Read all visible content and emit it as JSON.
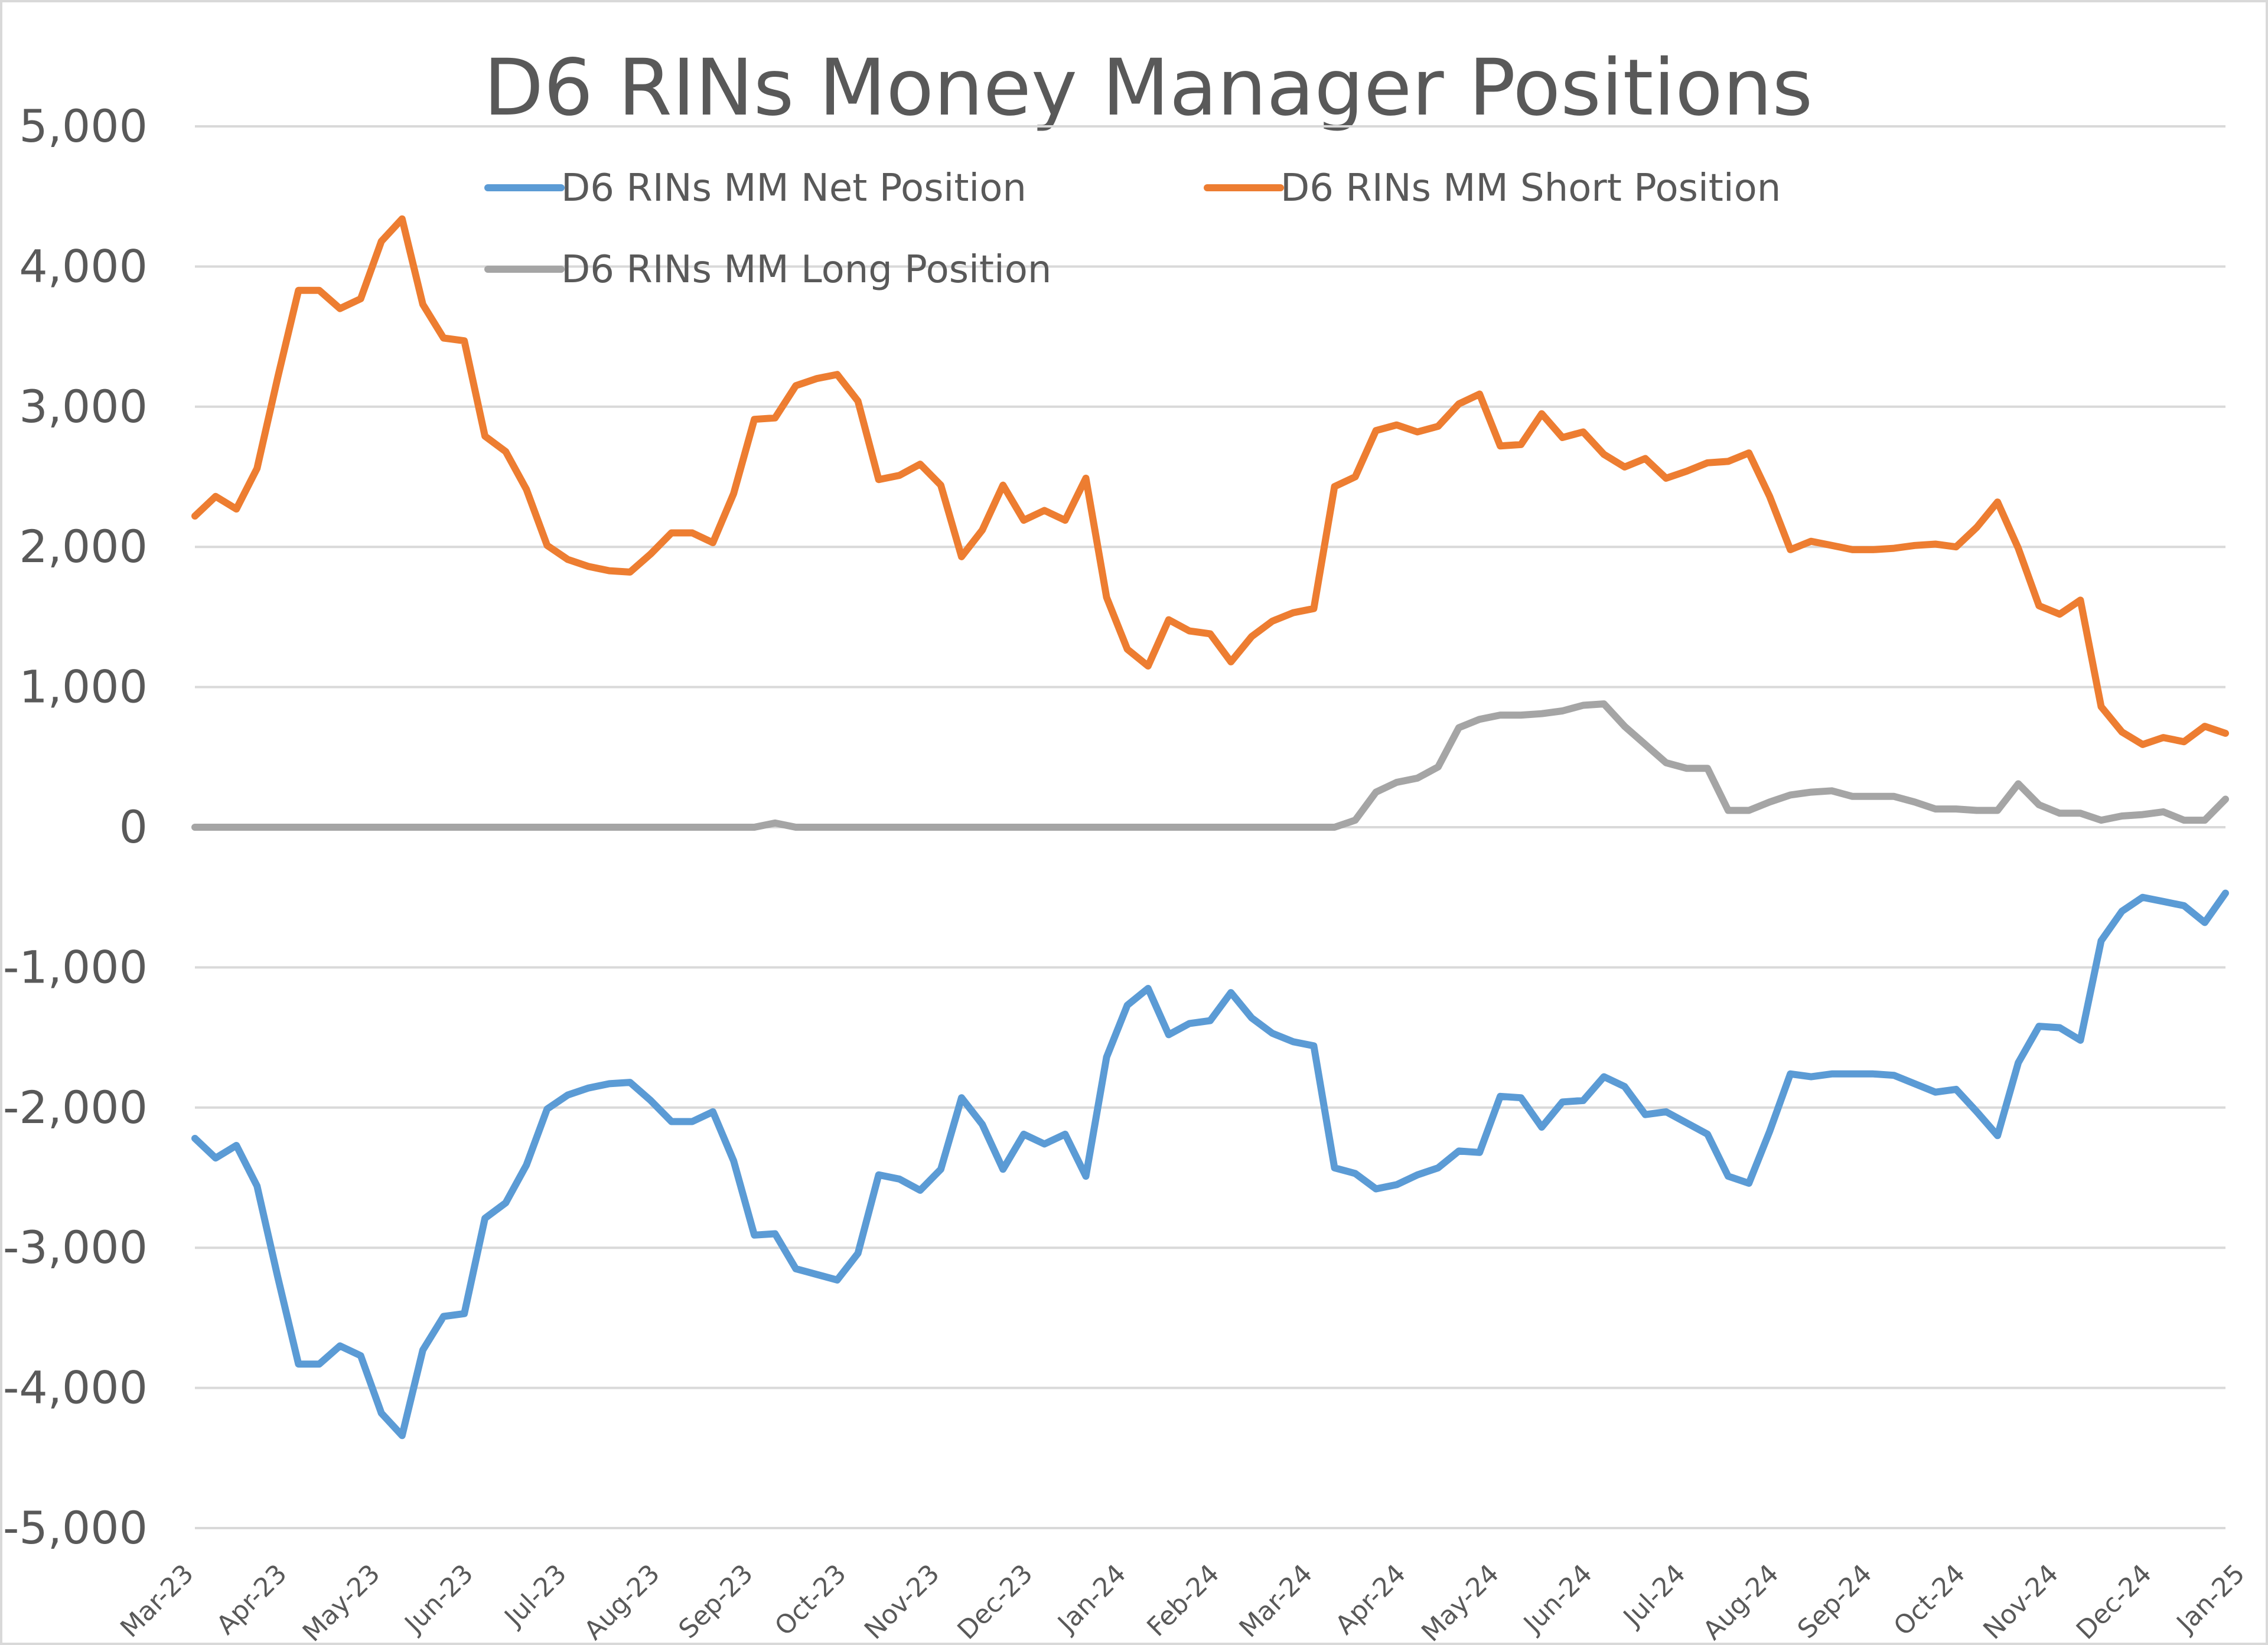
{
  "chart_data": {
    "type": "line",
    "title": "D6 RINs Money Manager Positions",
    "xlabel": "",
    "ylabel": "",
    "ylim": [
      -5000,
      5000
    ],
    "yticks": [
      5000,
      4000,
      3000,
      2000,
      1000,
      0,
      -1000,
      -2000,
      -3000,
      -4000,
      -5000
    ],
    "ytick_labels": [
      "5,000",
      "4,000",
      "3,000",
      "2,000",
      "1,000",
      "0",
      "-1,000",
      "-2,000",
      "-3,000",
      "-4,000",
      "-5,000"
    ],
    "x_tick_labels": [
      "Mar-23",
      "Apr-23",
      "May-23",
      "Jun-23",
      "Jul-23",
      "Aug-23",
      "Sep-23",
      "Oct-23",
      "Nov-23",
      "Dec-23",
      "Jan-24",
      "Feb-24",
      "Mar-24",
      "Apr-24",
      "May-24",
      "Jun-24",
      "Jul-24",
      "Aug-24",
      "Sep-24",
      "Oct-24",
      "Nov-24",
      "Dec-24",
      "Jan-25"
    ],
    "x_tick_index": [
      0,
      4.5,
      9,
      13.5,
      18,
      22.5,
      27,
      31.5,
      36,
      40.5,
      45,
      49.5,
      54,
      58.5,
      63,
      67.5,
      72,
      76.5,
      81,
      85.5,
      90,
      94.5,
      99
    ],
    "grid": true,
    "legend": "top-left",
    "series": [
      {
        "name": "D6 RINs MM Net Position",
        "color": "#5b9bd5",
        "values": [
          -2220,
          -2360,
          -2270,
          -2560,
          -3210,
          -3830,
          -3830,
          -3700,
          -3770,
          -4180,
          -4340,
          -3730,
          -3490,
          -3470,
          -2790,
          -2680,
          -2410,
          -2010,
          -1910,
          -1860,
          -1830,
          -1820,
          -1950,
          -2100,
          -2100,
          -2030,
          -2380,
          -2910,
          -2900,
          -3150,
          -3190,
          -3230,
          -3040,
          -2480,
          -2510,
          -2590,
          -2440,
          -1930,
          -2120,
          -2440,
          -2190,
          -2260,
          -2190,
          -2490,
          -1640,
          -1270,
          -1150,
          -1480,
          -1400,
          -1380,
          -1180,
          -1360,
          -1470,
          -1530,
          -1560,
          -2430,
          -2470,
          -2580,
          -2550,
          -2480,
          -2430,
          -2310,
          -2320,
          -1920,
          -1930,
          -2140,
          -1960,
          -1950,
          -1780,
          -1850,
          -2050,
          -2030,
          -2110,
          -2190,
          -2490,
          -2540,
          -2170,
          -1760,
          -1780,
          -1760,
          -1760,
          -1760,
          -1770,
          -1830,
          -1890,
          -1870,
          -2030,
          -2200,
          -1680,
          -1420,
          -1430,
          -1520,
          -810,
          -600,
          -500,
          -530,
          -560,
          -680,
          -470
        ]
      },
      {
        "name": "D6 RINs MM Short Position",
        "color": "#ed7d31",
        "values": [
          2220,
          2360,
          2270,
          2560,
          3210,
          3830,
          3830,
          3700,
          3770,
          4180,
          4340,
          3730,
          3490,
          3470,
          2790,
          2680,
          2410,
          2010,
          1910,
          1860,
          1830,
          1820,
          1950,
          2100,
          2100,
          2030,
          2380,
          2910,
          2920,
          3150,
          3200,
          3230,
          3040,
          2480,
          2510,
          2590,
          2440,
          1930,
          2120,
          2440,
          2190,
          2260,
          2190,
          2490,
          1640,
          1270,
          1150,
          1480,
          1400,
          1380,
          1180,
          1360,
          1470,
          1530,
          1560,
          2430,
          2500,
          2830,
          2870,
          2820,
          2860,
          3020,
          3090,
          2720,
          2730,
          2950,
          2780,
          2820,
          2660,
          2570,
          2630,
          2490,
          2540,
          2600,
          2610,
          2670,
          2360,
          1980,
          2040,
          2010,
          1980,
          1980,
          1990,
          2010,
          2020,
          2000,
          2140,
          2320,
          1990,
          1580,
          1520,
          1620,
          860,
          680,
          590,
          640,
          610,
          720,
          670
        ]
      },
      {
        "name": "D6 RINs MM Long Position",
        "color": "#a5a5a5",
        "values": [
          0,
          0,
          0,
          0,
          0,
          0,
          0,
          0,
          0,
          0,
          0,
          0,
          0,
          0,
          0,
          0,
          0,
          0,
          0,
          0,
          0,
          0,
          0,
          0,
          0,
          0,
          0,
          0,
          30,
          0,
          0,
          0,
          0,
          0,
          0,
          0,
          0,
          0,
          0,
          0,
          0,
          0,
          0,
          0,
          0,
          0,
          0,
          0,
          0,
          0,
          0,
          0,
          0,
          0,
          0,
          0,
          50,
          250,
          320,
          350,
          430,
          710,
          770,
          800,
          800,
          810,
          830,
          870,
          880,
          720,
          590,
          460,
          420,
          420,
          120,
          120,
          180,
          230,
          250,
          260,
          220,
          220,
          220,
          180,
          130,
          130,
          120,
          120,
          310,
          160,
          100,
          100,
          50,
          80,
          90,
          110,
          50,
          50,
          200
        ]
      }
    ]
  }
}
